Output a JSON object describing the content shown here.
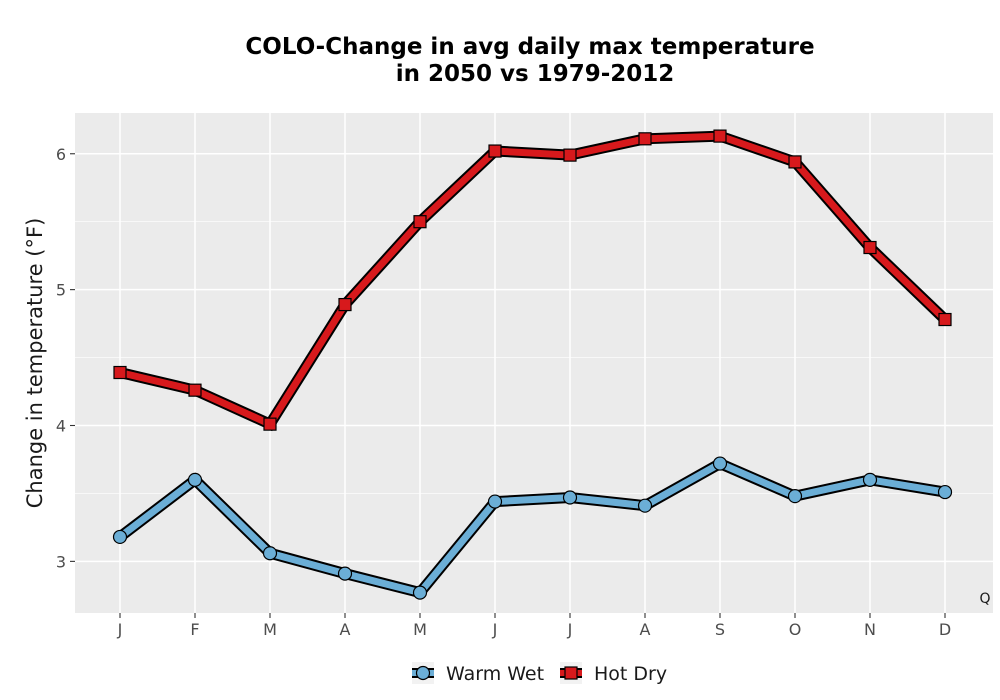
{
  "chart_data": {
    "type": "line",
    "title_line1": "COLO-Change in avg daily max temperature",
    "title_line2": "in 2050 vs 1979-2012",
    "xlabel": "",
    "ylabel": "Change in temperature (°F)",
    "categories": [
      "J",
      "F",
      "M",
      "A",
      "M",
      "J",
      "J",
      "A",
      "S",
      "O",
      "N",
      "D"
    ],
    "ylim": [
      2.62,
      6.3
    ],
    "yticks": [
      3,
      4,
      5,
      6
    ],
    "grid": true,
    "legend_position": "bottom",
    "corner_label": "Q",
    "series": [
      {
        "name": "Warm Wet",
        "marker": "circle",
        "color": "#6baed6",
        "values": [
          3.18,
          3.6,
          3.06,
          2.91,
          2.77,
          3.44,
          3.47,
          3.41,
          3.72,
          3.48,
          3.6,
          3.51
        ]
      },
      {
        "name": "Hot Dry",
        "marker": "square",
        "color": "#d7191c",
        "values": [
          4.39,
          4.26,
          4.01,
          4.89,
          5.5,
          6.02,
          5.99,
          6.11,
          6.13,
          5.94,
          5.31,
          4.78
        ]
      }
    ]
  }
}
